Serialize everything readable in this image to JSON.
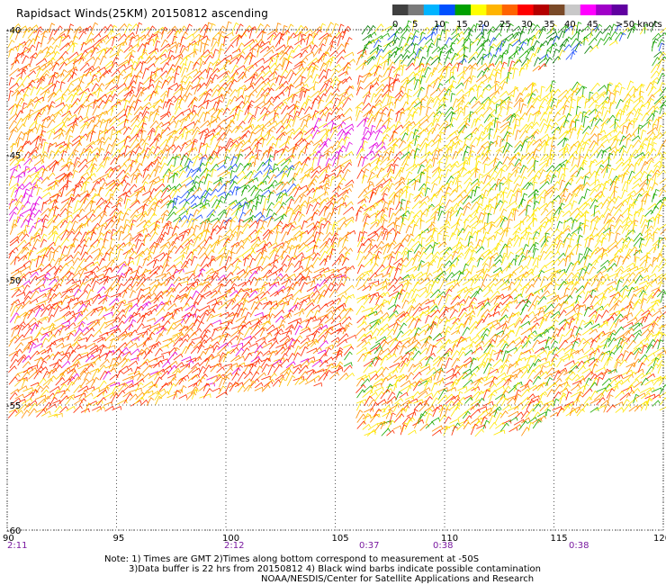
{
  "title": "Rapidsact Winds(25KM) 20150812 ascending",
  "colorbar": {
    "colors": [
      "#404040",
      "#7a7a7a",
      "#00b4ff",
      "#0050ff",
      "#00a000",
      "#ffff00",
      "#ffb400",
      "#ff6400",
      "#ff0000",
      "#b40000",
      "#7a4a28",
      "#c8c8c8",
      "#ff00ff",
      "#a000c8",
      "#6000a0"
    ],
    "labels": [
      "0",
      "5",
      "10",
      "15",
      "20",
      "25",
      "30",
      "35",
      "40",
      "45",
      ">50 knots"
    ]
  },
  "axes": {
    "lat_labels": [
      "-40",
      "-45",
      "-50",
      "-55",
      "-60"
    ],
    "lon_labels": [
      "90",
      "95",
      "100",
      "105",
      "110",
      "115",
      "120"
    ],
    "lat_range": [
      -60,
      -40
    ],
    "lon_range": [
      90,
      120
    ],
    "grid": "dotted"
  },
  "times": [
    "2:11",
    "2:12",
    "0:37",
    "0:38",
    "0:38"
  ],
  "notes": {
    "line1": "Note: 1) Times are GMT 2)Times along bottom correspond to measurement at -50S",
    "line2": "3)Data buffer is 22 hrs from 20150812 4) Black wind barbs indicate possible contamination",
    "line3": "NOAA/NESDIS/Center for Satellite Applications and Research"
  }
}
